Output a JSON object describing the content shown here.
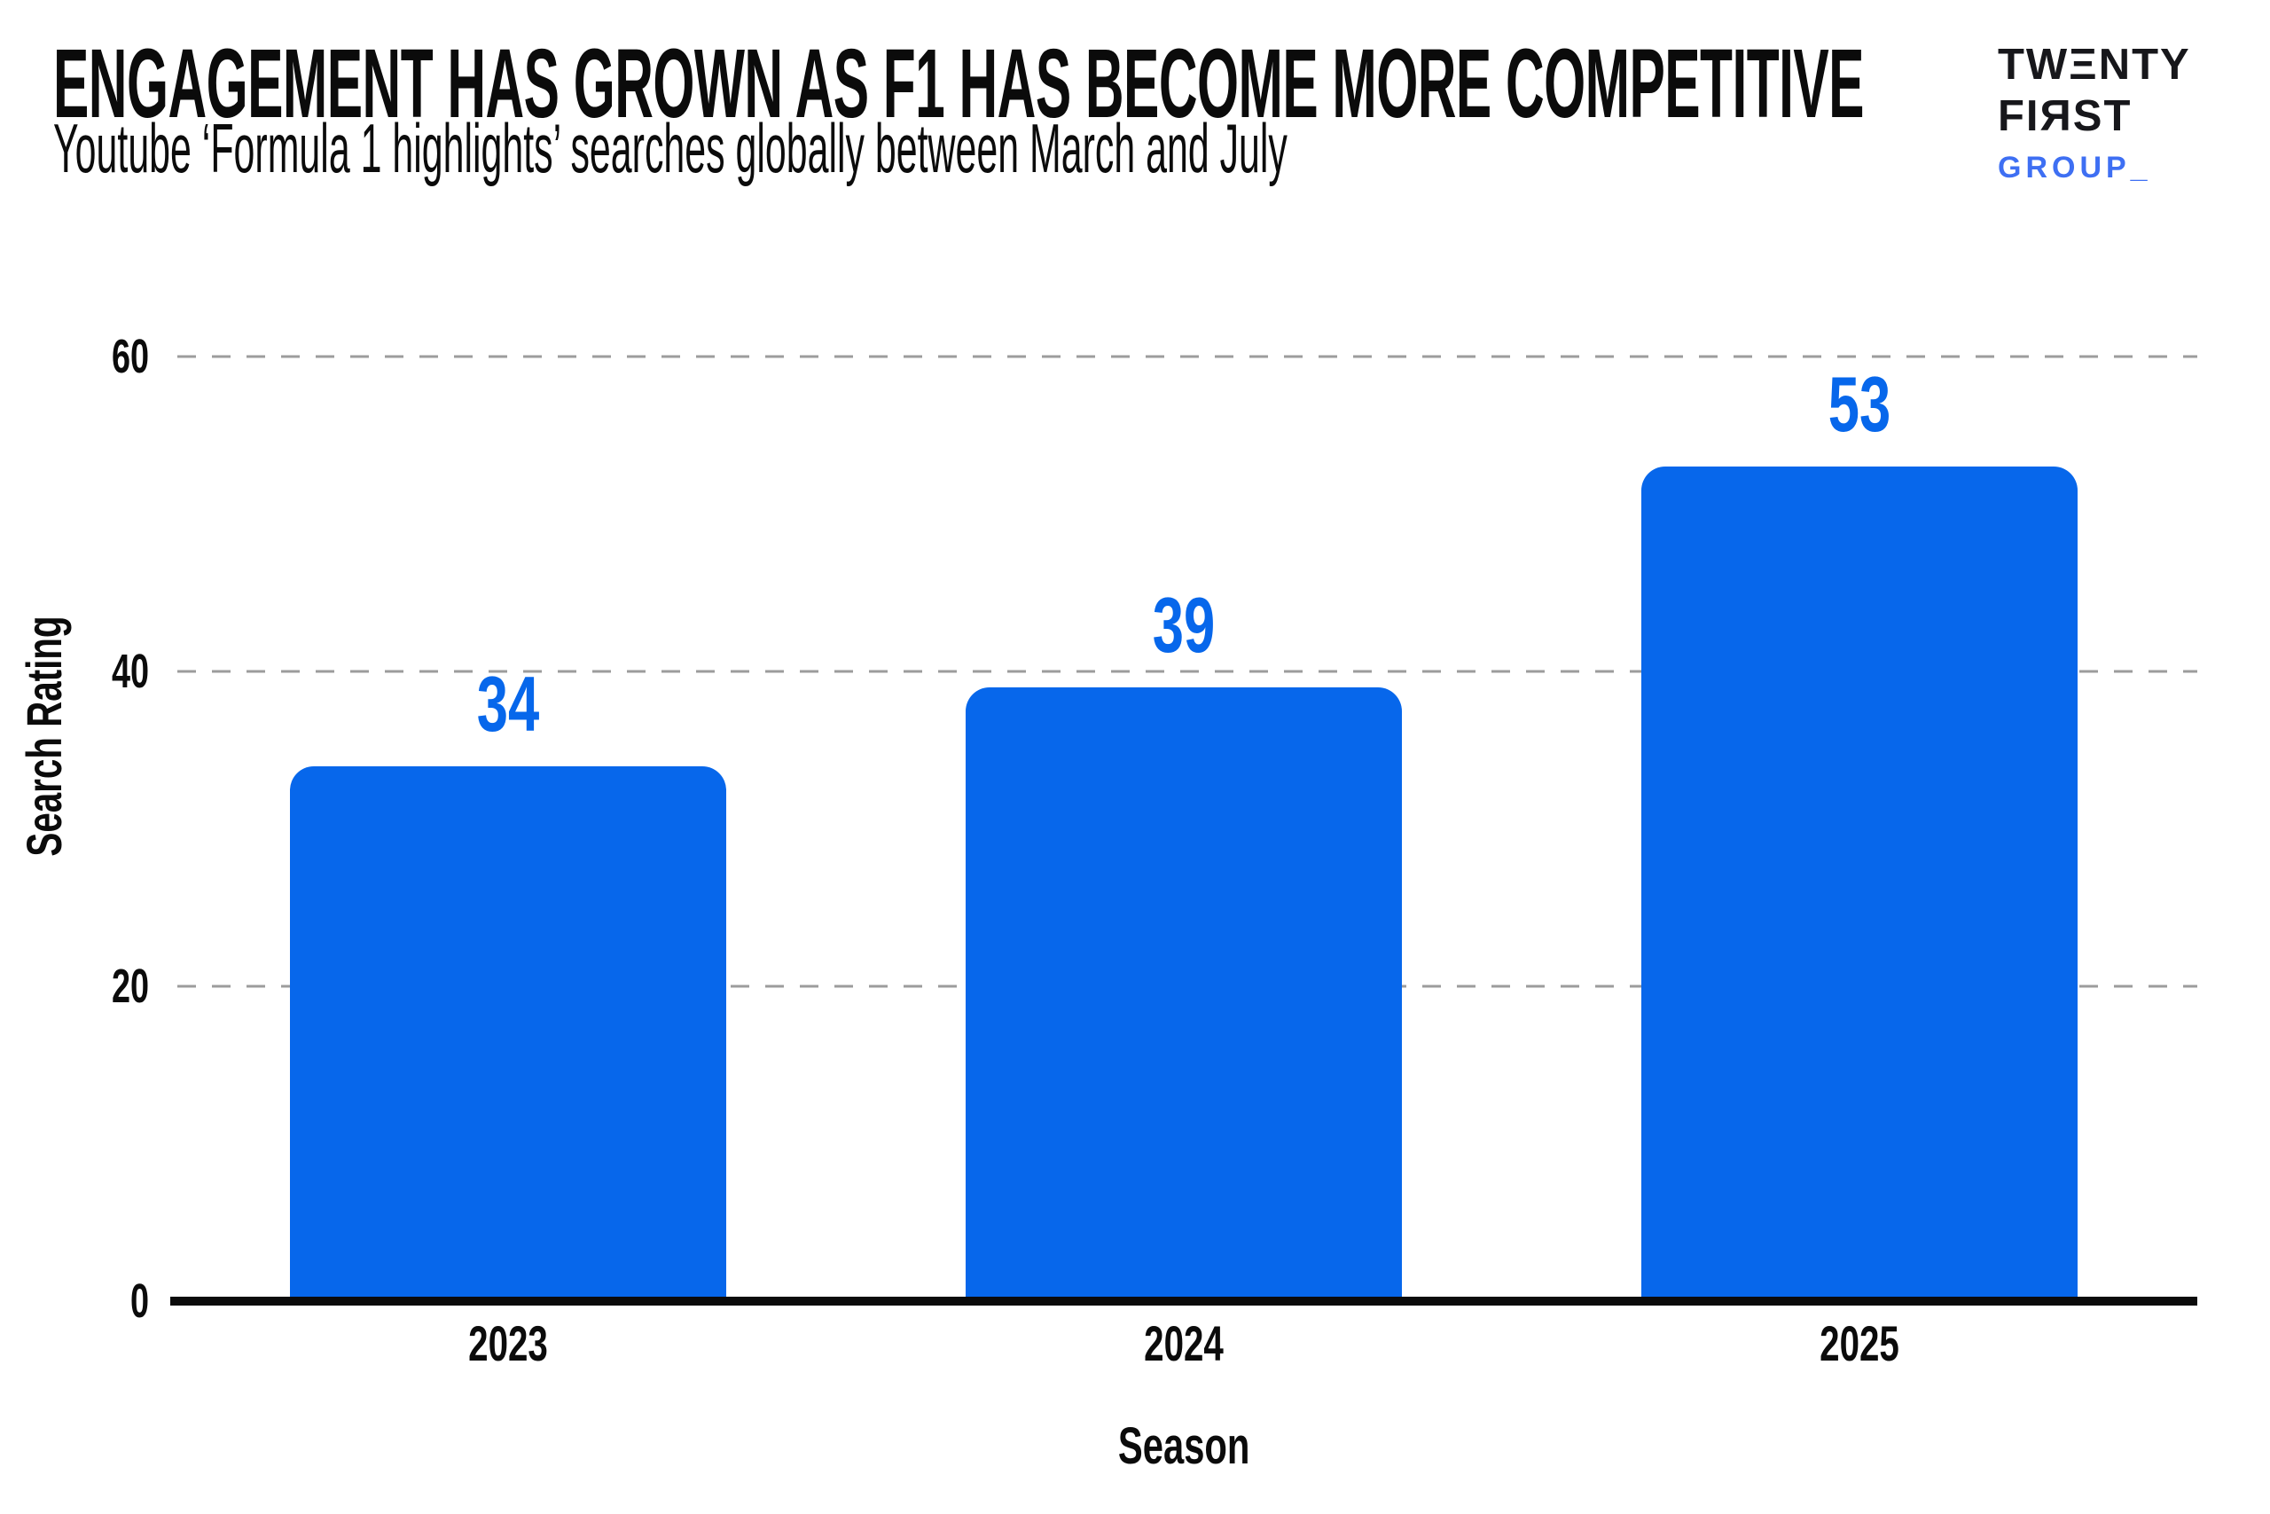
{
  "logo": {
    "line1": "TWΞNTY",
    "line2": "FIЯST",
    "line3": "GROUP_"
  },
  "chart_data": {
    "type": "bar",
    "title": "ENGAGEMENT HAS GROWN AS F1 HAS BECOME MORE COMPETITIVE",
    "subtitle": "Youtube ‘Formula 1 highlights’ searches globally between March and July",
    "categories": [
      "2023",
      "2024",
      "2025"
    ],
    "values": [
      34,
      39,
      53
    ],
    "xlabel": "Season",
    "ylabel": "Search Rating",
    "ylim": [
      0,
      60
    ],
    "yticks": [
      0,
      20,
      40,
      60
    ],
    "grid": "horizontal-dashed",
    "legend": "none",
    "bar_color": "#0767EB",
    "value_label_color": "#0767EB"
  },
  "colors": {
    "background": "#ffffff",
    "text": "#0b0b0b",
    "axis": "#0b0b0b",
    "gridline": "#9c9c9c",
    "bar": "#0767EB",
    "logo_black": "#17171b",
    "logo_blue": "#3E6FF3"
  }
}
